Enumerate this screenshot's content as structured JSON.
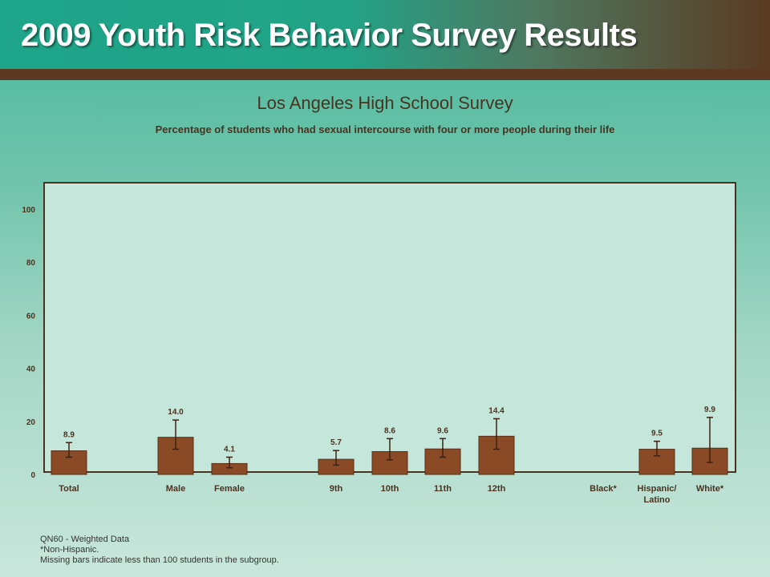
{
  "header": {
    "title": "2009 Youth Risk Behavior Survey Results"
  },
  "chart_data": {
    "type": "bar",
    "title": "Los Angeles High School Survey",
    "subtitle": "Percentage of students who had sexual intercourse with four or more people during their life",
    "xlabel": "",
    "ylabel": "",
    "ylim": [
      0,
      100
    ],
    "yticks": [
      0,
      20,
      40,
      60,
      80,
      100
    ],
    "grid": false,
    "categories": [
      {
        "label": [
          "Total"
        ],
        "value": 8.9,
        "value_label": "8.9",
        "ci": [
          6.5,
          12.0
        ]
      },
      {
        "label": [
          "Male"
        ],
        "value": 14.0,
        "value_label": "14.0",
        "ci": [
          9.5,
          20.5
        ]
      },
      {
        "label": [
          "Female"
        ],
        "value": 4.1,
        "value_label": "4.1",
        "ci": [
          2.5,
          6.5
        ]
      },
      {
        "label": [
          "9th"
        ],
        "value": 5.7,
        "value_label": "5.7",
        "ci": [
          3.5,
          9.0
        ]
      },
      {
        "label": [
          "10th"
        ],
        "value": 8.6,
        "value_label": "8.6",
        "ci": [
          5.5,
          13.5
        ]
      },
      {
        "label": [
          "11th"
        ],
        "value": 9.6,
        "value_label": "9.6",
        "ci": [
          6.5,
          13.5
        ]
      },
      {
        "label": [
          "12th"
        ],
        "value": 14.4,
        "value_label": "14.4",
        "ci": [
          9.5,
          21.0
        ]
      },
      {
        "label": [
          "Black*"
        ],
        "value": null,
        "value_label": "",
        "ci": null
      },
      {
        "label": [
          "Hispanic/",
          "Latino"
        ],
        "value": 9.5,
        "value_label": "9.5",
        "ci": [
          7.0,
          12.5
        ]
      },
      {
        "label": [
          "White*"
        ],
        "value": 9.9,
        "value_label": "9.9",
        "ci": [
          4.5,
          21.5
        ]
      }
    ]
  },
  "notes": [
    "QN60 - Weighted Data",
    "*Non-Hispanic.",
    "Missing bars indicate less than 100 students in the subgroup."
  ],
  "colors": {
    "bar": "#8b4a26",
    "bar_border": "#5a2f16",
    "text": "#4a3320"
  }
}
